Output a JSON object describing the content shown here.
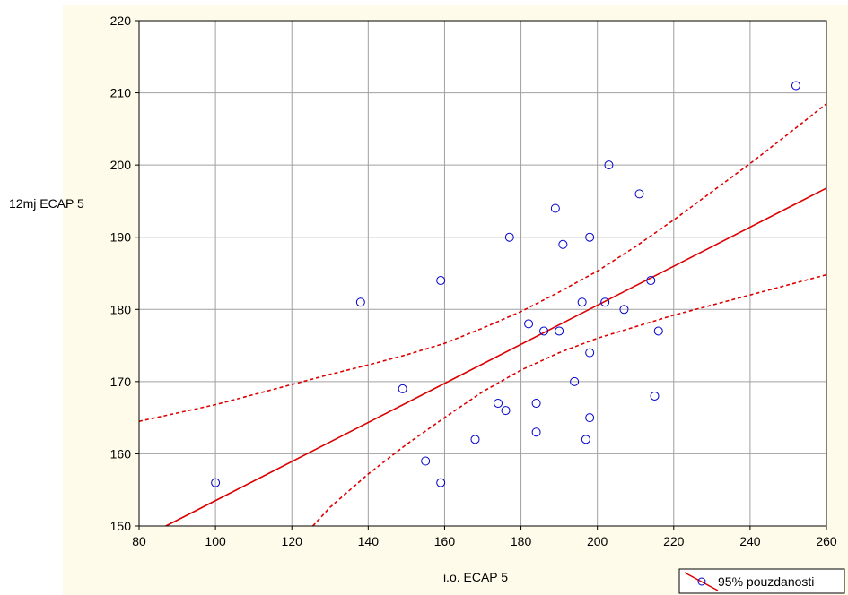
{
  "chart_data": {
    "type": "scatter",
    "xlabel": "i.o. ECAP 5",
    "ylabel": "12mj ECAP  5",
    "xlim": [
      80,
      260
    ],
    "ylim": [
      150,
      220
    ],
    "xticks": [
      80,
      100,
      120,
      140,
      160,
      180,
      200,
      220,
      240,
      260
    ],
    "yticks": [
      150,
      160,
      170,
      180,
      190,
      200,
      210,
      220
    ],
    "grid": true,
    "legend": {
      "position": "bottom-right",
      "label": "95% pouzdanosti"
    },
    "colors": {
      "points": "#0000cc",
      "fit": "#dd0000",
      "background": "#fffbea"
    },
    "points": [
      [
        100,
        156
      ],
      [
        138,
        181
      ],
      [
        149,
        169
      ],
      [
        155,
        159
      ],
      [
        159,
        184
      ],
      [
        159,
        156
      ],
      [
        168,
        162
      ],
      [
        174,
        167
      ],
      [
        176,
        166
      ],
      [
        177,
        190
      ],
      [
        182,
        178
      ],
      [
        184,
        167
      ],
      [
        184,
        163
      ],
      [
        186,
        177
      ],
      [
        189,
        194
      ],
      [
        190,
        177
      ],
      [
        191,
        189
      ],
      [
        194,
        170
      ],
      [
        196,
        181
      ],
      [
        197,
        162
      ],
      [
        198,
        190
      ],
      [
        198,
        174
      ],
      [
        198,
        165
      ],
      [
        202,
        181
      ],
      [
        203,
        200
      ],
      [
        207,
        180
      ],
      [
        211,
        196
      ],
      [
        214,
        184
      ],
      [
        215,
        168
      ],
      [
        216,
        177
      ],
      [
        252,
        211
      ]
    ],
    "fit_line": [
      [
        87,
        150
      ],
      [
        260,
        196.8
      ]
    ],
    "ci_upper": [
      [
        80,
        164.5
      ],
      [
        100,
        166.8
      ],
      [
        120,
        169.6
      ],
      [
        130,
        171.0
      ],
      [
        140,
        172.3
      ],
      [
        150,
        173.7
      ],
      [
        160,
        175.3
      ],
      [
        170,
        177.4
      ],
      [
        180,
        179.7
      ],
      [
        190,
        182.4
      ],
      [
        200,
        185.3
      ],
      [
        210,
        188.7
      ],
      [
        220,
        192.4
      ],
      [
        230,
        196.3
      ],
      [
        240,
        200.2
      ],
      [
        250,
        204.3
      ],
      [
        260,
        208.5
      ]
    ],
    "ci_lower": [
      [
        125.5,
        150
      ],
      [
        130,
        152.6
      ],
      [
        140,
        157.2
      ],
      [
        150,
        161.3
      ],
      [
        160,
        165.0
      ],
      [
        170,
        168.6
      ],
      [
        180,
        171.6
      ],
      [
        190,
        174.0
      ],
      [
        200,
        176.0
      ],
      [
        210,
        177.6
      ],
      [
        220,
        179.2
      ],
      [
        230,
        180.6
      ],
      [
        240,
        182.0
      ],
      [
        250,
        183.4
      ],
      [
        260,
        184.8
      ]
    ]
  }
}
